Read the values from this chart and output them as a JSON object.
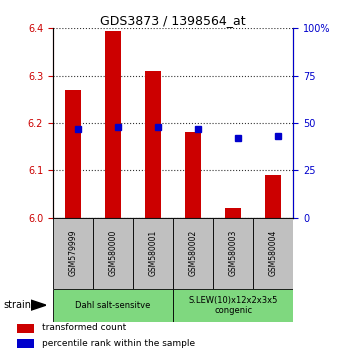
{
  "title": "GDS3873 / 1398564_at",
  "samples": [
    "GSM579999",
    "GSM580000",
    "GSM580001",
    "GSM580002",
    "GSM580003",
    "GSM580004"
  ],
  "red_values": [
    6.27,
    6.395,
    6.31,
    6.18,
    6.02,
    6.09
  ],
  "blue_values": [
    47,
    48,
    48,
    47,
    42,
    43
  ],
  "baseline": 6.0,
  "ylim_left": [
    6.0,
    6.4
  ],
  "ylim_right": [
    0,
    100
  ],
  "yticks_left": [
    6.0,
    6.1,
    6.2,
    6.3,
    6.4
  ],
  "yticks_right": [
    0,
    25,
    50,
    75,
    100
  ],
  "groups": [
    {
      "label": "Dahl salt-sensitve",
      "start": 0,
      "end": 3,
      "color": "#7FD87F"
    },
    {
      "label": "S.LEW(10)x12x2x3x5\ncongenic",
      "start": 3,
      "end": 6,
      "color": "#7FD87F"
    }
  ],
  "red_color": "#CC0000",
  "blue_color": "#0000CC",
  "bar_bg_color": "#C0C0C0",
  "left_axis_color": "#CC0000",
  "right_axis_color": "#0000CC",
  "legend_red_label": "transformed count",
  "legend_blue_label": "percentile rank within the sample",
  "strain_label": "strain",
  "figsize": [
    3.41,
    3.54
  ],
  "dpi": 100
}
